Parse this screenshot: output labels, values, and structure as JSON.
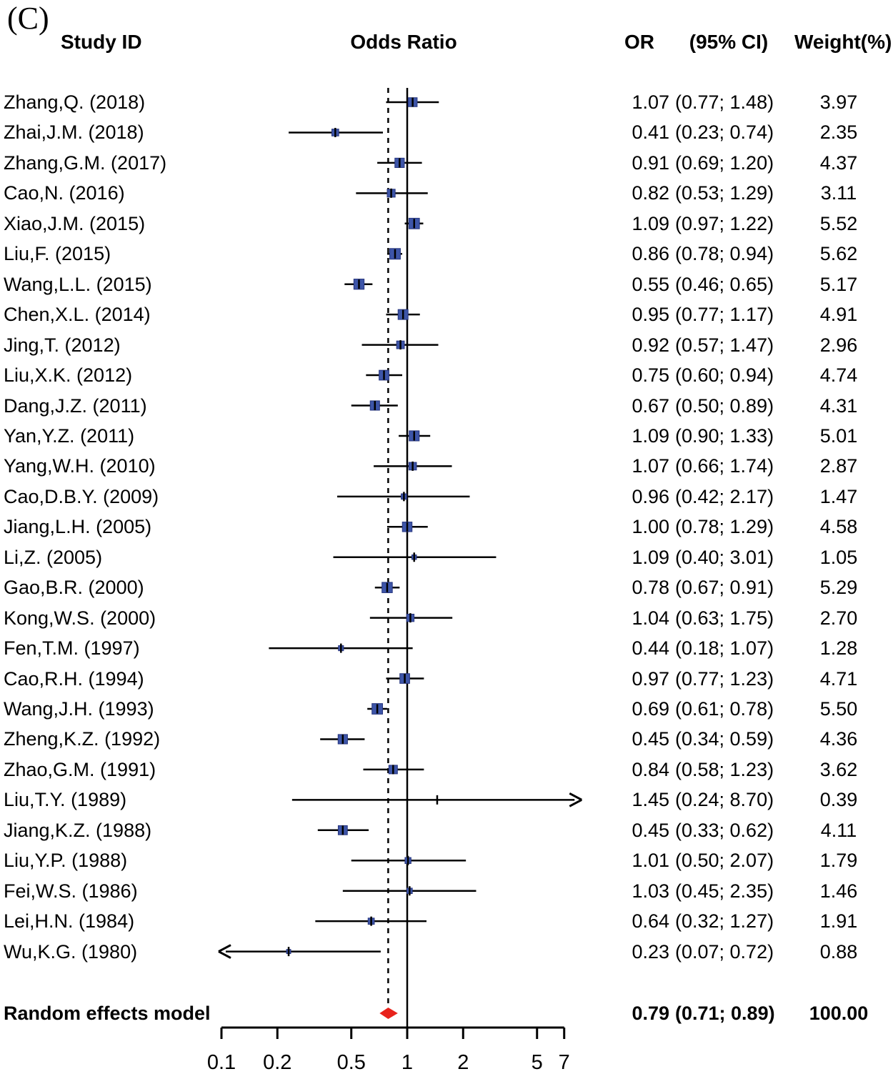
{
  "panel_label": "(C)",
  "header": {
    "study_id": "Study ID",
    "odds_ratio": "Odds Ratio",
    "or": "OR",
    "ci": "(95% CI)",
    "weight": "Weight(%)"
  },
  "colors": {
    "marker_fill": "#3d55a8",
    "marker_stroke": "#27357e",
    "diamond": "#e8231c",
    "line": "#000000"
  },
  "chart_data": {
    "type": "forest",
    "title": "Odds Ratio",
    "x_axis": {
      "scale": "log",
      "min": 0.1,
      "max": 7,
      "ref_line": 1,
      "ticks": [
        0.1,
        0.2,
        0.5,
        1,
        2,
        5,
        7
      ],
      "tick_labels": [
        "0.1",
        "0.2",
        "0.5",
        "1",
        "2",
        "5",
        "7"
      ]
    },
    "studies": [
      {
        "label": "Zhang,Q. (2018)",
        "or": 1.07,
        "lo": 0.77,
        "hi": 1.48,
        "weight": 3.97,
        "or_text": "1.07",
        "ci_text": "(0.77; 1.48)",
        "weight_text": "3.97"
      },
      {
        "label": "Zhai,J.M. (2018)",
        "or": 0.41,
        "lo": 0.23,
        "hi": 0.74,
        "weight": 2.35,
        "or_text": "0.41",
        "ci_text": "(0.23; 0.74)",
        "weight_text": "2.35"
      },
      {
        "label": "Zhang,G.M. (2017)",
        "or": 0.91,
        "lo": 0.69,
        "hi": 1.2,
        "weight": 4.37,
        "or_text": "0.91",
        "ci_text": "(0.69; 1.20)",
        "weight_text": "4.37"
      },
      {
        "label": "Cao,N. (2016)",
        "or": 0.82,
        "lo": 0.53,
        "hi": 1.29,
        "weight": 3.11,
        "or_text": "0.82",
        "ci_text": "(0.53; 1.29)",
        "weight_text": "3.11"
      },
      {
        "label": "Xiao,J.M. (2015)",
        "or": 1.09,
        "lo": 0.97,
        "hi": 1.22,
        "weight": 5.52,
        "or_text": "1.09",
        "ci_text": "(0.97; 1.22)",
        "weight_text": "5.52"
      },
      {
        "label": "Liu,F. (2015)",
        "or": 0.86,
        "lo": 0.78,
        "hi": 0.94,
        "weight": 5.62,
        "or_text": "0.86",
        "ci_text": "(0.78; 0.94)",
        "weight_text": "5.62"
      },
      {
        "label": "Wang,L.L. (2015)",
        "or": 0.55,
        "lo": 0.46,
        "hi": 0.65,
        "weight": 5.17,
        "or_text": "0.55",
        "ci_text": "(0.46; 0.65)",
        "weight_text": "5.17"
      },
      {
        "label": "Chen,X.L. (2014)",
        "or": 0.95,
        "lo": 0.77,
        "hi": 1.17,
        "weight": 4.91,
        "or_text": "0.95",
        "ci_text": "(0.77; 1.17)",
        "weight_text": "4.91"
      },
      {
        "label": "Jing,T. (2012)",
        "or": 0.92,
        "lo": 0.57,
        "hi": 1.47,
        "weight": 2.96,
        "or_text": "0.92",
        "ci_text": "(0.57; 1.47)",
        "weight_text": "2.96"
      },
      {
        "label": "Liu,X.K. (2012)",
        "or": 0.75,
        "lo": 0.6,
        "hi": 0.94,
        "weight": 4.74,
        "or_text": "0.75",
        "ci_text": "(0.60; 0.94)",
        "weight_text": "4.74"
      },
      {
        "label": "Dang,J.Z. (2011)",
        "or": 0.67,
        "lo": 0.5,
        "hi": 0.89,
        "weight": 4.31,
        "or_text": "0.67",
        "ci_text": "(0.50; 0.89)",
        "weight_text": "4.31"
      },
      {
        "label": "Yan,Y.Z. (2011)",
        "or": 1.09,
        "lo": 0.9,
        "hi": 1.33,
        "weight": 5.01,
        "or_text": "1.09",
        "ci_text": "(0.90; 1.33)",
        "weight_text": "5.01"
      },
      {
        "label": "Yang,W.H. (2010)",
        "or": 1.07,
        "lo": 0.66,
        "hi": 1.74,
        "weight": 2.87,
        "or_text": "1.07",
        "ci_text": "(0.66; 1.74)",
        "weight_text": "2.87"
      },
      {
        "label": "Cao,D.B.Y. (2009)",
        "or": 0.96,
        "lo": 0.42,
        "hi": 2.17,
        "weight": 1.47,
        "or_text": "0.96",
        "ci_text": "(0.42; 2.17)",
        "weight_text": "1.47"
      },
      {
        "label": "Jiang,L.H. (2005)",
        "or": 1.0,
        "lo": 0.78,
        "hi": 1.29,
        "weight": 4.58,
        "or_text": "1.00",
        "ci_text": "(0.78; 1.29)",
        "weight_text": "4.58"
      },
      {
        "label": "Li,Z. (2005)",
        "or": 1.09,
        "lo": 0.4,
        "hi": 3.01,
        "weight": 1.05,
        "or_text": "1.09",
        "ci_text": "(0.40; 3.01)",
        "weight_text": "1.05"
      },
      {
        "label": "Gao,B.R. (2000)",
        "or": 0.78,
        "lo": 0.67,
        "hi": 0.91,
        "weight": 5.29,
        "or_text": "0.78",
        "ci_text": "(0.67; 0.91)",
        "weight_text": "5.29"
      },
      {
        "label": "Kong,W.S. (2000)",
        "or": 1.04,
        "lo": 0.63,
        "hi": 1.75,
        "weight": 2.7,
        "or_text": "1.04",
        "ci_text": "(0.63; 1.75)",
        "weight_text": "2.70"
      },
      {
        "label": "Fen,T.M. (1997)",
        "or": 0.44,
        "lo": 0.18,
        "hi": 1.07,
        "weight": 1.28,
        "or_text": "0.44",
        "ci_text": "(0.18; 1.07)",
        "weight_text": "1.28"
      },
      {
        "label": "Cao,R.H. (1994)",
        "or": 0.97,
        "lo": 0.77,
        "hi": 1.23,
        "weight": 4.71,
        "or_text": "0.97",
        "ci_text": "(0.77; 1.23)",
        "weight_text": "4.71"
      },
      {
        "label": "Wang,J.H. (1993)",
        "or": 0.69,
        "lo": 0.61,
        "hi": 0.78,
        "weight": 5.5,
        "or_text": "0.69",
        "ci_text": "(0.61; 0.78)",
        "weight_text": "5.50"
      },
      {
        "label": "Zheng,K.Z. (1992)",
        "or": 0.45,
        "lo": 0.34,
        "hi": 0.59,
        "weight": 4.36,
        "or_text": "0.45",
        "ci_text": "(0.34; 0.59)",
        "weight_text": "4.36"
      },
      {
        "label": "Zhao,G.M. (1991)",
        "or": 0.84,
        "lo": 0.58,
        "hi": 1.23,
        "weight": 3.62,
        "or_text": "0.84",
        "ci_text": "(0.58; 1.23)",
        "weight_text": "3.62"
      },
      {
        "label": "Liu,T.Y. (1989)",
        "or": 1.45,
        "lo": 0.24,
        "hi": 8.7,
        "weight": 0.39,
        "or_text": "1.45",
        "ci_text": "(0.24; 8.70)",
        "weight_text": "0.39"
      },
      {
        "label": "Jiang,K.Z. (1988)",
        "or": 0.45,
        "lo": 0.33,
        "hi": 0.62,
        "weight": 4.11,
        "or_text": "0.45",
        "ci_text": "(0.33; 0.62)",
        "weight_text": "4.11"
      },
      {
        "label": "Liu,Y.P. (1988)",
        "or": 1.01,
        "lo": 0.5,
        "hi": 2.07,
        "weight": 1.79,
        "or_text": "1.01",
        "ci_text": "(0.50; 2.07)",
        "weight_text": "1.79"
      },
      {
        "label": "Fei,W.S. (1986)",
        "or": 1.03,
        "lo": 0.45,
        "hi": 2.35,
        "weight": 1.46,
        "or_text": "1.03",
        "ci_text": "(0.45; 2.35)",
        "weight_text": "1.46"
      },
      {
        "label": "Lei,H.N. (1984)",
        "or": 0.64,
        "lo": 0.32,
        "hi": 1.27,
        "weight": 1.91,
        "or_text": "0.64",
        "ci_text": "(0.32; 1.27)",
        "weight_text": "1.91"
      },
      {
        "label": "Wu,K.G. (1980)",
        "or": 0.23,
        "lo": 0.07,
        "hi": 0.72,
        "weight": 0.88,
        "or_text": "0.23",
        "ci_text": "(0.07; 0.72)",
        "weight_text": "0.88"
      }
    ],
    "summary": {
      "label": "Random effects model",
      "or": 0.79,
      "lo": 0.71,
      "hi": 0.89,
      "or_text": "0.79",
      "ci_text": "(0.71; 0.89)",
      "weight_text": "100.00"
    }
  }
}
